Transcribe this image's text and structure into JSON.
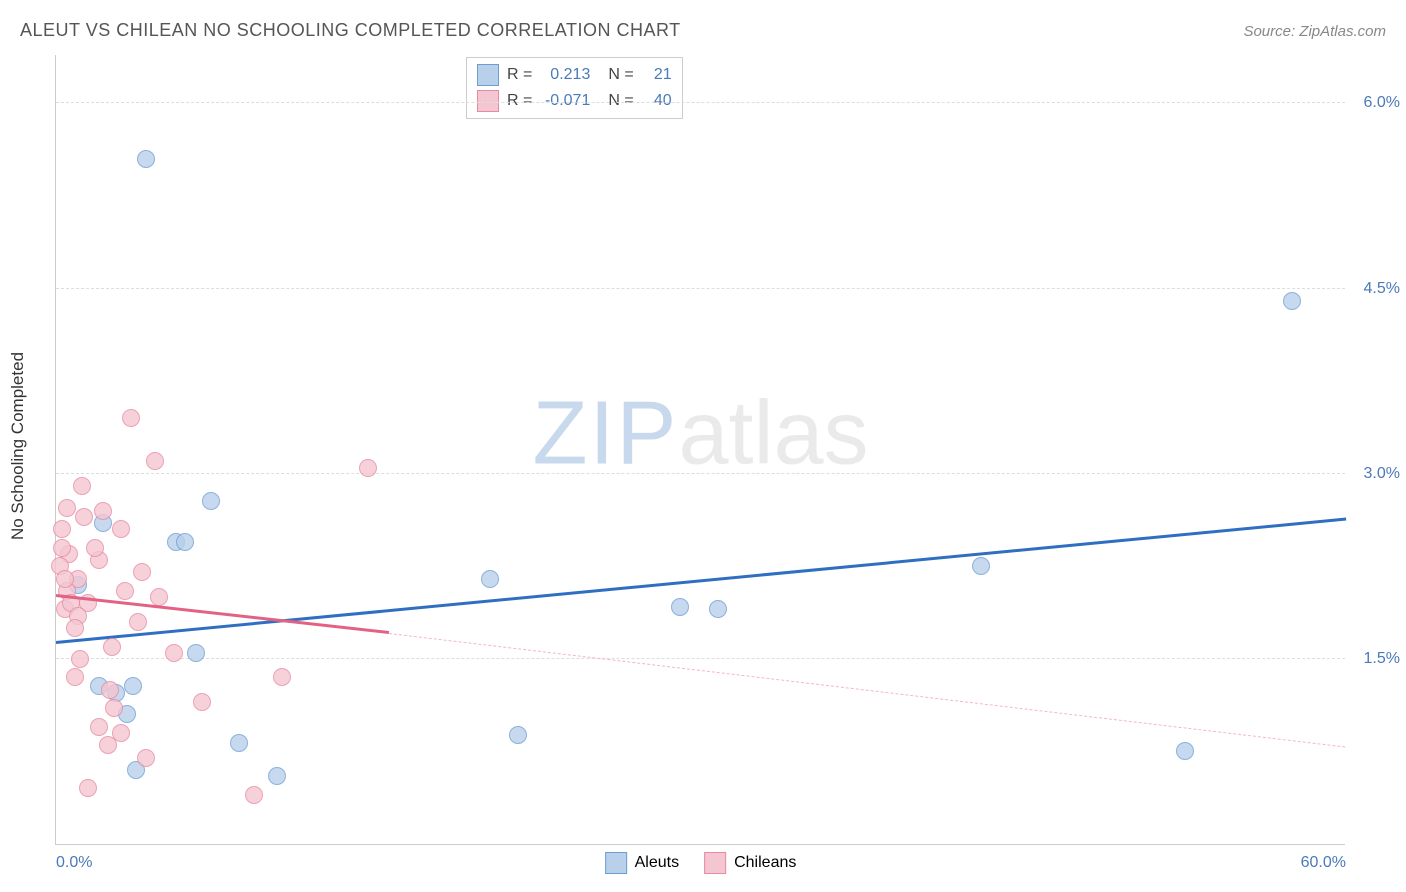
{
  "title": "ALEUT VS CHILEAN NO SCHOOLING COMPLETED CORRELATION CHART",
  "source": "Source: ZipAtlas.com",
  "y_axis_title": "No Schooling Completed",
  "watermark": {
    "part1": "ZIP",
    "part2": "atlas"
  },
  "chart": {
    "type": "scatter",
    "xlim": [
      0,
      60
    ],
    "ylim": [
      0,
      6.4
    ],
    "x_ticks": [
      {
        "v": 0,
        "label": "0.0%"
      },
      {
        "v": 60,
        "label": "60.0%"
      }
    ],
    "y_ticks": [
      {
        "v": 1.5,
        "label": "1.5%"
      },
      {
        "v": 3.0,
        "label": "3.0%"
      },
      {
        "v": 4.5,
        "label": "4.5%"
      },
      {
        "v": 6.0,
        "label": "6.0%"
      }
    ],
    "grid_color": "#dddddd",
    "background_color": "#ffffff",
    "series": [
      {
        "name": "Aleuts",
        "color_fill": "#b9d0ea",
        "color_stroke": "#6f9ed4",
        "marker_size": 18,
        "trend": {
          "x1": 0,
          "y1": 1.62,
          "x2": 60,
          "y2": 2.62,
          "color": "#2f6fc2",
          "width": 3,
          "dash": "solid"
        },
        "trend_dashed_extend": null,
        "R": "0.213",
        "N": "21",
        "points": [
          [
            4.2,
            5.55
          ],
          [
            57.5,
            4.4
          ],
          [
            7.2,
            2.78
          ],
          [
            5.6,
            2.45
          ],
          [
            20.2,
            2.15
          ],
          [
            29.0,
            1.92
          ],
          [
            30.8,
            1.9
          ],
          [
            43.0,
            2.25
          ],
          [
            6.5,
            1.55
          ],
          [
            2.0,
            1.28
          ],
          [
            2.8,
            1.22
          ],
          [
            3.6,
            1.28
          ],
          [
            3.3,
            1.05
          ],
          [
            21.5,
            0.88
          ],
          [
            8.5,
            0.82
          ],
          [
            3.7,
            0.6
          ],
          [
            10.3,
            0.55
          ],
          [
            52.5,
            0.75
          ],
          [
            2.2,
            2.6
          ],
          [
            1.0,
            2.1
          ],
          [
            6.0,
            2.45
          ]
        ]
      },
      {
        "name": "Chileans",
        "color_fill": "#f4c6d1",
        "color_stroke": "#e88aa4",
        "marker_size": 18,
        "trend": {
          "x1": 0,
          "y1": 2.0,
          "x2": 15.5,
          "y2": 1.7,
          "color": "#e26284",
          "width": 3,
          "dash": "solid"
        },
        "trend_dashed_extend": {
          "x1": 15.5,
          "y1": 1.7,
          "x2": 60,
          "y2": 0.78,
          "color": "#f3b7c6",
          "width": 1.5,
          "dash": "dashed"
        },
        "R": "-0.071",
        "N": "40",
        "points": [
          [
            3.5,
            3.45
          ],
          [
            4.6,
            3.1
          ],
          [
            14.5,
            3.05
          ],
          [
            1.2,
            2.9
          ],
          [
            0.5,
            2.72
          ],
          [
            2.2,
            2.7
          ],
          [
            3.0,
            2.55
          ],
          [
            0.3,
            2.55
          ],
          [
            0.6,
            2.35
          ],
          [
            0.3,
            2.4
          ],
          [
            2.0,
            2.3
          ],
          [
            4.0,
            2.2
          ],
          [
            1.0,
            2.15
          ],
          [
            0.5,
            2.05
          ],
          [
            3.2,
            2.05
          ],
          [
            1.5,
            1.95
          ],
          [
            0.4,
            1.9
          ],
          [
            0.7,
            1.95
          ],
          [
            4.8,
            2.0
          ],
          [
            1.0,
            1.85
          ],
          [
            3.8,
            1.8
          ],
          [
            0.9,
            1.75
          ],
          [
            10.5,
            1.35
          ],
          [
            2.5,
            1.25
          ],
          [
            6.8,
            1.15
          ],
          [
            2.7,
            1.1
          ],
          [
            2.0,
            0.95
          ],
          [
            3.0,
            0.9
          ],
          [
            2.4,
            0.8
          ],
          [
            4.2,
            0.7
          ],
          [
            1.5,
            0.45
          ],
          [
            9.2,
            0.4
          ],
          [
            1.3,
            2.65
          ],
          [
            0.2,
            2.25
          ],
          [
            1.8,
            2.4
          ],
          [
            2.6,
            1.6
          ],
          [
            1.1,
            1.5
          ],
          [
            0.9,
            1.35
          ],
          [
            0.4,
            2.15
          ],
          [
            5.5,
            1.55
          ]
        ]
      }
    ]
  },
  "legend_top": {
    "r_label": "R =",
    "n_label": "N ="
  },
  "legend_bottom": [
    {
      "label": "Aleuts",
      "fill": "#b9d0ea",
      "stroke": "#6f9ed4"
    },
    {
      "label": "Chileans",
      "fill": "#f4c6d1",
      "stroke": "#e88aa4"
    }
  ]
}
